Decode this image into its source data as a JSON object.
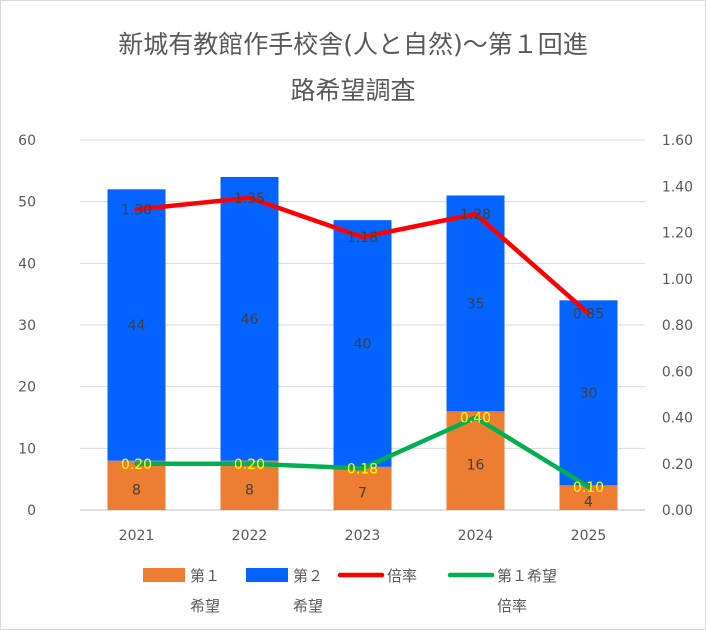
{
  "chart_data": {
    "type": "bar",
    "title_line1": "新城有教館作手校舎(人と自然)〜第１回進",
    "title_line2": "路希望調査",
    "categories": [
      "2021",
      "2022",
      "2023",
      "2024",
      "2025"
    ],
    "series": [
      {
        "name_line1": "第１",
        "name_line2": "希望",
        "kind": "bar",
        "axis": "left",
        "color": "#ed7d31",
        "values": [
          8,
          8,
          7,
          16,
          4
        ]
      },
      {
        "name_line1": "第２",
        "name_line2": "希望",
        "kind": "bar",
        "axis": "left",
        "color": "#0563ff",
        "values": [
          44,
          46,
          40,
          35,
          30
        ]
      },
      {
        "name_line1": "倍率",
        "name_line2": "",
        "kind": "line",
        "axis": "right",
        "color": "#ff0000",
        "values": [
          1.3,
          1.35,
          1.18,
          1.28,
          0.85
        ],
        "labels": [
          "1.30",
          "1.35",
          "1.18",
          "1.28",
          "0.85"
        ]
      },
      {
        "name_line1": "第１希望",
        "name_line2": "倍率",
        "kind": "line",
        "axis": "right",
        "color": "#00b050",
        "values": [
          0.2,
          0.2,
          0.18,
          0.4,
          0.1
        ],
        "labels": [
          "0.20",
          "0.20",
          "0.18",
          "0.40",
          "0.10"
        ]
      }
    ],
    "y_left": {
      "min": 0,
      "max": 60,
      "ticks": [
        "0",
        "10",
        "20",
        "30",
        "40",
        "50",
        "60"
      ]
    },
    "y_right": {
      "min": 0,
      "max": 1.6,
      "ticks": [
        "0.00",
        "0.20",
        "0.40",
        "0.60",
        "0.80",
        "1.00",
        "1.20",
        "1.40",
        "1.60"
      ]
    },
    "grid": true,
    "legend_position": "bottom"
  }
}
